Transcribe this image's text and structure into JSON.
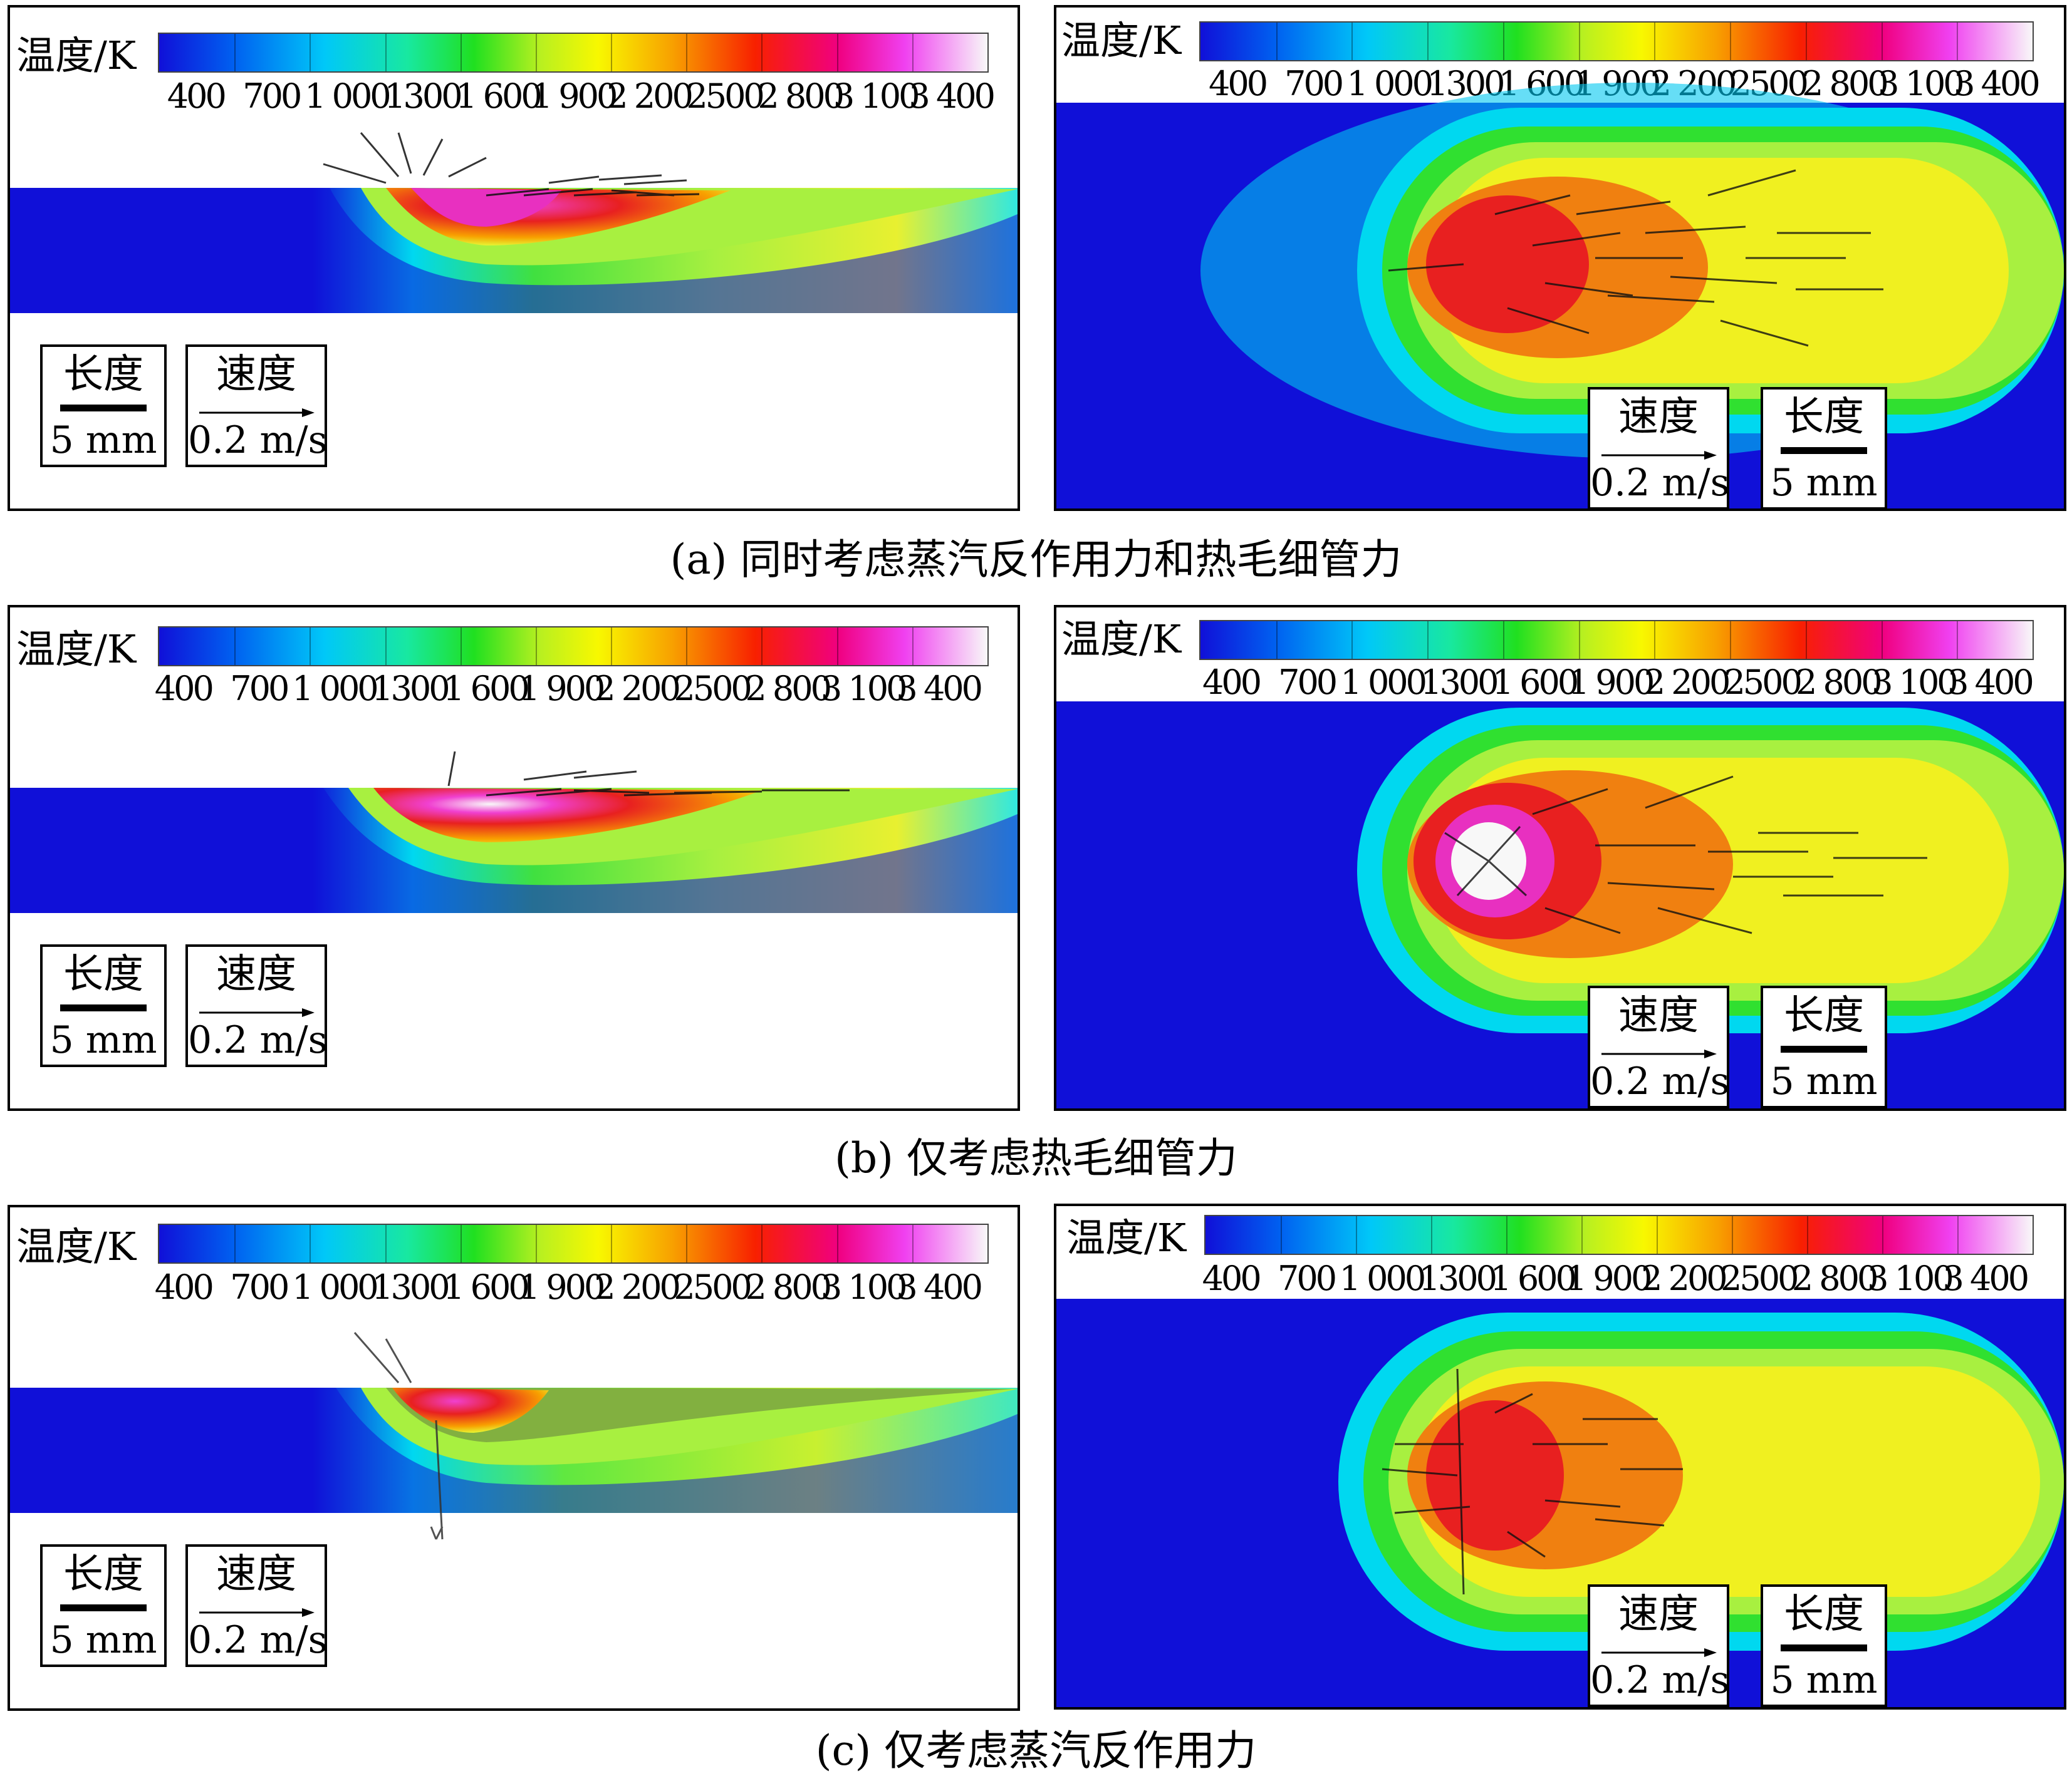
{
  "colorbar": {
    "title": "温度/K",
    "labels": [
      "400",
      "700",
      "1 000",
      "1300",
      "1 600",
      "1 900",
      "2 200",
      "2500",
      "2 800",
      "3 100",
      "3 400"
    ]
  },
  "legend": {
    "length_title": "长度",
    "length_value": "5 mm",
    "speed_title": "速度",
    "speed_value": "0.2 m/s"
  },
  "captions": {
    "a": "(a) 同时考虑蒸汽反作用力和热毛细管力",
    "b": "(b) 仅考虑热毛细管力",
    "c": "(c) 仅考虑蒸汽反作用力"
  },
  "colors": {
    "blue": "#1010d8",
    "cyan": "#00d8f0",
    "green": "#30e030",
    "yellow": "#f0f020",
    "red": "#e82020",
    "magenta": "#e830c0",
    "white": "#f8f8f8"
  }
}
